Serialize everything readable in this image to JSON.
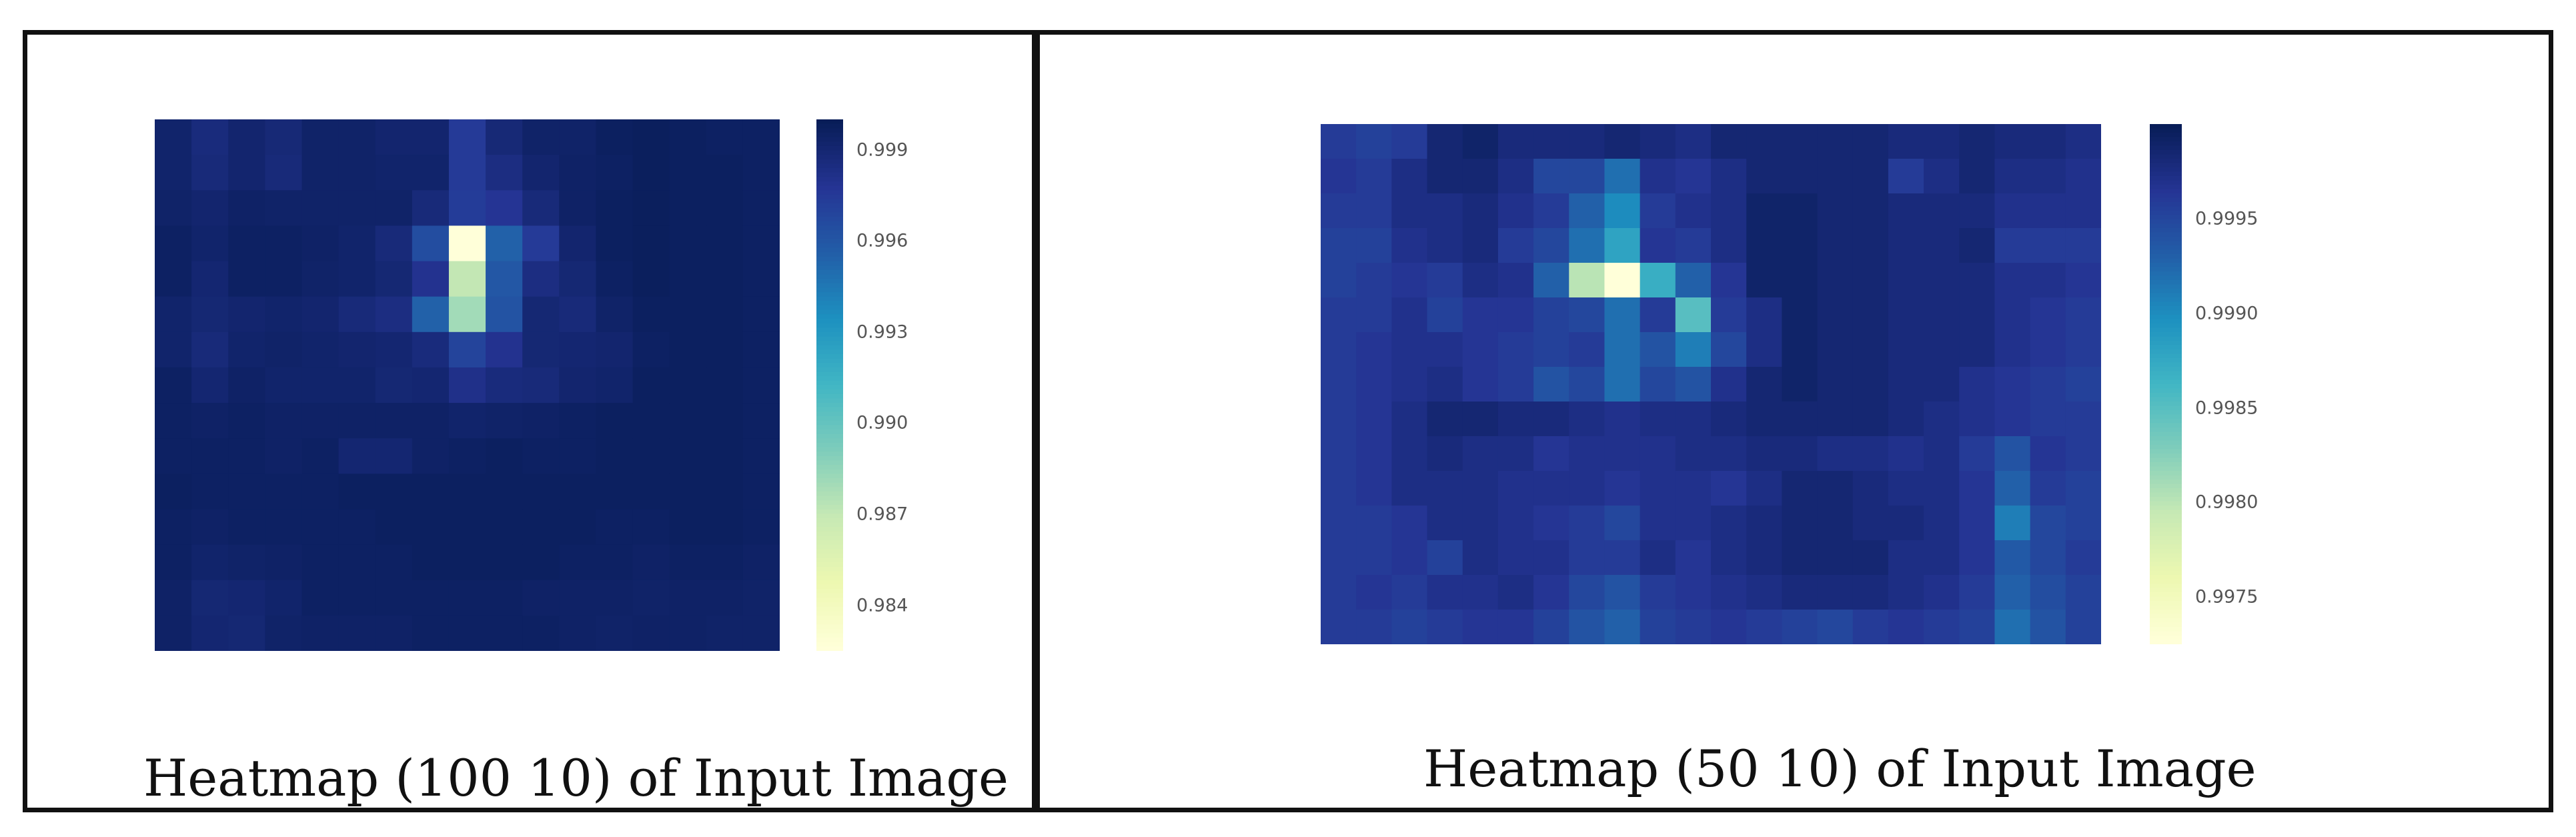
{
  "panels": [
    {
      "caption": "Heatmap (100 10) of Input Image"
    },
    {
      "caption": "Heatmap (50 10) of Input Image"
    }
  ],
  "colors": {
    "scale": [
      "#ffffd9",
      "#edf8b1",
      "#c7e9b4",
      "#7fcdbb",
      "#41b6c4",
      "#1d91c0",
      "#225ea8",
      "#253494",
      "#081d58"
    ]
  },
  "chart_data": [
    {
      "type": "heatmap",
      "title": "",
      "colormap": "YlGnBu",
      "rows": 15,
      "cols": 17,
      "zlim": [
        0.9825,
        1.0
      ],
      "colorbar": {
        "ticks": [
          0.999,
          0.996,
          0.993,
          0.99,
          0.987,
          0.984
        ],
        "tick_labels": [
          "0.999",
          "0.996",
          "0.993",
          "0.990",
          "0.987",
          "0.984"
        ],
        "position": "right"
      },
      "values": [
        [
          0.9993,
          0.9987,
          0.9992,
          0.9989,
          0.9994,
          0.9994,
          0.9992,
          0.9992,
          0.9975,
          0.9989,
          0.9994,
          0.9994,
          0.9997,
          0.9998,
          0.9997,
          0.9996,
          0.9996
        ],
        [
          0.9993,
          0.9988,
          0.9992,
          0.9988,
          0.9994,
          0.9994,
          0.9993,
          0.9993,
          0.9975,
          0.9985,
          0.9992,
          0.9995,
          0.9996,
          0.9998,
          0.9997,
          0.9997,
          0.9996
        ],
        [
          0.9994,
          0.9992,
          0.9995,
          0.9994,
          0.9994,
          0.9994,
          0.9994,
          0.9988,
          0.9974,
          0.9978,
          0.9988,
          0.9995,
          0.9997,
          0.9998,
          0.9997,
          0.9997,
          0.9996
        ],
        [
          0.9996,
          0.9993,
          0.9996,
          0.9996,
          0.9995,
          0.9993,
          0.9988,
          0.9965,
          0.9825,
          0.9955,
          0.9975,
          0.9992,
          0.9997,
          0.9998,
          0.9997,
          0.9997,
          0.9996
        ],
        [
          0.9996,
          0.9991,
          0.9996,
          0.9996,
          0.9994,
          0.9993,
          0.999,
          0.998,
          0.987,
          0.996,
          0.9985,
          0.999,
          0.9996,
          0.9998,
          0.9997,
          0.9997,
          0.9996
        ],
        [
          0.9993,
          0.999,
          0.9992,
          0.9993,
          0.9992,
          0.9988,
          0.9985,
          0.9955,
          0.988,
          0.9962,
          0.999,
          0.9988,
          0.9994,
          0.9997,
          0.9997,
          0.9997,
          0.9996
        ],
        [
          0.9993,
          0.9988,
          0.9993,
          0.9994,
          0.9993,
          0.9992,
          0.9991,
          0.9987,
          0.997,
          0.998,
          0.999,
          0.9991,
          0.9992,
          0.9996,
          0.9997,
          0.9997,
          0.9996
        ],
        [
          0.9996,
          0.9991,
          0.9995,
          0.9993,
          0.9993,
          0.9993,
          0.999,
          0.9991,
          0.9982,
          0.9987,
          0.9988,
          0.9992,
          0.9993,
          0.9997,
          0.9997,
          0.9997,
          0.9996
        ],
        [
          0.9996,
          0.9995,
          0.9996,
          0.9995,
          0.9995,
          0.9995,
          0.9995,
          0.9995,
          0.9993,
          0.9994,
          0.9995,
          0.9996,
          0.9997,
          0.9997,
          0.9997,
          0.9997,
          0.9996
        ],
        [
          0.9996,
          0.9996,
          0.9996,
          0.9995,
          0.9996,
          0.9991,
          0.9991,
          0.9995,
          0.9996,
          0.9997,
          0.9996,
          0.9996,
          0.9997,
          0.9997,
          0.9997,
          0.9997,
          0.9996
        ],
        [
          0.9997,
          0.9996,
          0.9996,
          0.9996,
          0.9996,
          0.9997,
          0.9997,
          0.9997,
          0.9997,
          0.9997,
          0.9997,
          0.9997,
          0.9997,
          0.9997,
          0.9997,
          0.9997,
          0.9996
        ],
        [
          0.9996,
          0.9995,
          0.9996,
          0.9996,
          0.9996,
          0.9996,
          0.9997,
          0.9997,
          0.9997,
          0.9997,
          0.9997,
          0.9997,
          0.9996,
          0.9996,
          0.9997,
          0.9997,
          0.9996
        ],
        [
          0.9996,
          0.9993,
          0.9994,
          0.9995,
          0.9996,
          0.9996,
          0.9996,
          0.9997,
          0.9997,
          0.9997,
          0.9997,
          0.9996,
          0.9996,
          0.9995,
          0.9996,
          0.9996,
          0.9995
        ],
        [
          0.9995,
          0.999,
          0.9991,
          0.9993,
          0.9996,
          0.9996,
          0.9996,
          0.9996,
          0.9996,
          0.9996,
          0.9995,
          0.9995,
          0.9995,
          0.9994,
          0.9995,
          0.9995,
          0.9994
        ],
        [
          0.9995,
          0.9991,
          0.999,
          0.9994,
          0.9995,
          0.9995,
          0.9995,
          0.9996,
          0.9996,
          0.9996,
          0.9996,
          0.9995,
          0.9994,
          0.9995,
          0.9995,
          0.9994,
          0.9994
        ]
      ]
    },
    {
      "type": "heatmap",
      "title": "",
      "colormap": "YlGnBu",
      "rows": 15,
      "cols": 22,
      "zlim": [
        0.99725,
        1.0
      ],
      "colorbar": {
        "ticks": [
          0.9995,
          0.999,
          0.9985,
          0.998,
          0.9975
        ],
        "tick_labels": [
          "0.9995",
          "0.9990",
          "0.9985",
          "0.9980",
          "0.9975"
        ],
        "position": "right"
      },
      "values": [
        [
          0.9996,
          0.99955,
          0.9996,
          0.99985,
          0.9999,
          0.9998,
          0.9998,
          0.9998,
          0.99985,
          0.9998,
          0.99975,
          0.99985,
          0.99985,
          0.99985,
          0.99985,
          0.99985,
          0.9998,
          0.9998,
          0.99985,
          0.9998,
          0.9998,
          0.99975
        ],
        [
          0.99965,
          0.9996,
          0.99975,
          0.99985,
          0.99985,
          0.99975,
          0.9995,
          0.9995,
          0.9992,
          0.9997,
          0.99965,
          0.99975,
          0.99985,
          0.99985,
          0.99985,
          0.99985,
          0.9996,
          0.99975,
          0.99985,
          0.99975,
          0.99975,
          0.9997
        ],
        [
          0.9996,
          0.9996,
          0.99975,
          0.99975,
          0.9998,
          0.9997,
          0.9996,
          0.9993,
          0.999,
          0.9996,
          0.9997,
          0.99975,
          0.9999,
          0.9999,
          0.99985,
          0.99985,
          0.9998,
          0.9998,
          0.9998,
          0.9997,
          0.9997,
          0.9997
        ],
        [
          0.99955,
          0.99955,
          0.9997,
          0.99975,
          0.9998,
          0.9996,
          0.9995,
          0.9992,
          0.9988,
          0.99965,
          0.9996,
          0.99975,
          0.9999,
          0.9999,
          0.99985,
          0.99985,
          0.9998,
          0.9998,
          0.99985,
          0.9996,
          0.9996,
          0.9996
        ],
        [
          0.99955,
          0.9996,
          0.99965,
          0.9996,
          0.99975,
          0.9997,
          0.9993,
          0.998,
          0.99725,
          0.9987,
          0.9993,
          0.99965,
          0.9999,
          0.9999,
          0.99985,
          0.99985,
          0.9998,
          0.9998,
          0.9998,
          0.9997,
          0.9997,
          0.99965
        ],
        [
          0.9996,
          0.9996,
          0.9997,
          0.99955,
          0.99965,
          0.99965,
          0.99955,
          0.9995,
          0.9992,
          0.9996,
          0.9985,
          0.9996,
          0.99975,
          0.9999,
          0.99985,
          0.99985,
          0.9998,
          0.9998,
          0.9998,
          0.9997,
          0.99965,
          0.9996
        ],
        [
          0.9996,
          0.99965,
          0.9997,
          0.9997,
          0.99965,
          0.9996,
          0.99955,
          0.9996,
          0.9992,
          0.9994,
          0.9991,
          0.9995,
          0.99975,
          0.9999,
          0.99985,
          0.99985,
          0.9998,
          0.9998,
          0.9998,
          0.9997,
          0.99965,
          0.9996
        ],
        [
          0.9996,
          0.99965,
          0.9997,
          0.99975,
          0.99965,
          0.9996,
          0.9994,
          0.9995,
          0.9992,
          0.9995,
          0.9994,
          0.9997,
          0.99985,
          0.9999,
          0.99985,
          0.99985,
          0.9998,
          0.9998,
          0.9997,
          0.99965,
          0.9996,
          0.99955
        ],
        [
          0.9996,
          0.99965,
          0.99975,
          0.99985,
          0.99985,
          0.9998,
          0.9998,
          0.99975,
          0.9997,
          0.99975,
          0.99975,
          0.9998,
          0.99985,
          0.99985,
          0.99985,
          0.99985,
          0.9998,
          0.99975,
          0.9997,
          0.99965,
          0.9996,
          0.9996
        ],
        [
          0.9996,
          0.99965,
          0.99975,
          0.9998,
          0.99975,
          0.99975,
          0.99965,
          0.9997,
          0.9997,
          0.9997,
          0.99975,
          0.99975,
          0.9998,
          0.9998,
          0.99975,
          0.99975,
          0.9997,
          0.99975,
          0.9996,
          0.9994,
          0.99965,
          0.9996
        ],
        [
          0.9996,
          0.99965,
          0.99975,
          0.99975,
          0.99975,
          0.9997,
          0.9997,
          0.9997,
          0.99965,
          0.9997,
          0.9997,
          0.99965,
          0.99975,
          0.99985,
          0.99985,
          0.9998,
          0.99975,
          0.99975,
          0.99965,
          0.9993,
          0.9996,
          0.99955
        ],
        [
          0.9996,
          0.9996,
          0.99965,
          0.99975,
          0.99975,
          0.9997,
          0.99965,
          0.9996,
          0.9995,
          0.9997,
          0.9997,
          0.99975,
          0.9998,
          0.99985,
          0.99985,
          0.9998,
          0.9998,
          0.99975,
          0.99965,
          0.9991,
          0.9995,
          0.99955
        ],
        [
          0.9996,
          0.9996,
          0.99965,
          0.99955,
          0.99975,
          0.9997,
          0.9997,
          0.9996,
          0.9996,
          0.99975,
          0.99965,
          0.99975,
          0.9998,
          0.99985,
          0.99985,
          0.99985,
          0.99975,
          0.99975,
          0.99965,
          0.99935,
          0.9995,
          0.9996
        ],
        [
          0.9996,
          0.99965,
          0.9996,
          0.9997,
          0.9997,
          0.99975,
          0.99965,
          0.9995,
          0.9994,
          0.9996,
          0.99965,
          0.9997,
          0.99975,
          0.9998,
          0.9998,
          0.9998,
          0.99975,
          0.9997,
          0.9996,
          0.9993,
          0.99945,
          0.99955
        ],
        [
          0.9996,
          0.9996,
          0.99955,
          0.9996,
          0.99965,
          0.99965,
          0.99955,
          0.9994,
          0.9993,
          0.99955,
          0.9996,
          0.99965,
          0.9996,
          0.99955,
          0.9995,
          0.9996,
          0.99965,
          0.9996,
          0.99955,
          0.9992,
          0.9994,
          0.99955
        ]
      ]
    }
  ]
}
